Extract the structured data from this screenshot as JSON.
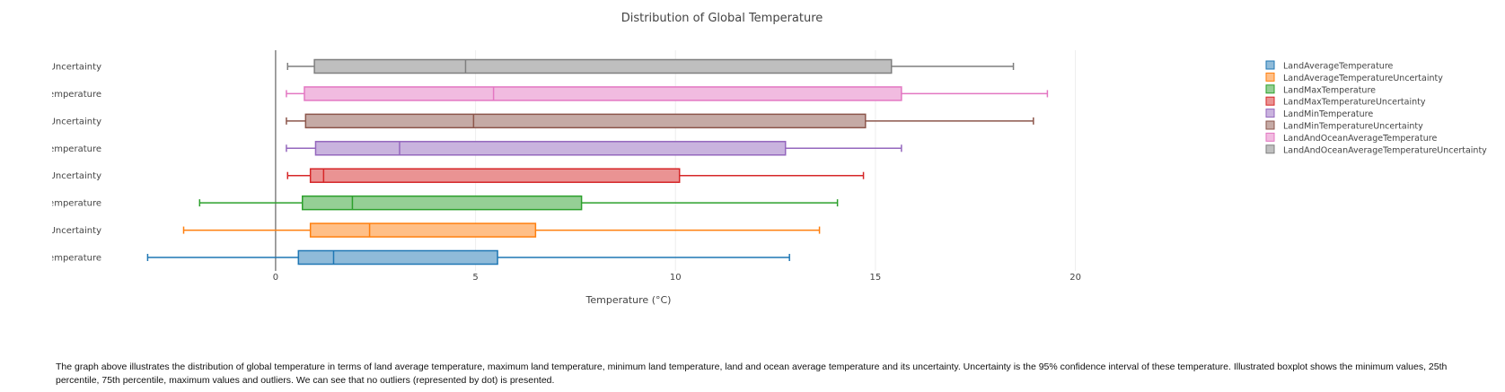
{
  "chart_data": {
    "type": "box",
    "orientation": "horizontal",
    "title": "Distribution of Global Temperature",
    "xlabel": "Temperature (°C)",
    "ylabel": "",
    "xlim": [
      -5.5,
      22.3
    ],
    "xticks": [
      0,
      5,
      10,
      15,
      20
    ],
    "grid": "vertical",
    "legend_position": "top-right",
    "series": [
      {
        "name": "LandAverageTemperature",
        "tick_label": "ɜTemperature",
        "color": "#1f77b4",
        "fill": "#8fbbd9",
        "min": -3.2,
        "q1": 0.57,
        "median": 1.45,
        "q3": 5.55,
        "max": 12.85
      },
      {
        "name": "LandAverageTemperatureUncertainty",
        "tick_label": "ɜeUncertainty",
        "color": "#ff7f0e",
        "fill": "#ffbf87",
        "min": -2.3,
        "q1": 0.87,
        "median": 2.35,
        "q3": 6.5,
        "max": 13.6
      },
      {
        "name": "LandMaxTemperature",
        "tick_label": ":Temperature",
        "color": "#2ca02c",
        "fill": "#95cf95",
        "min": -1.9,
        "q1": 0.67,
        "median": 1.92,
        "q3": 7.65,
        "max": 14.05
      },
      {
        "name": "LandMaxTemperatureUncertainty",
        "tick_label": "ɜeUncertainty",
        "color": "#d62728",
        "fill": "#ea9393",
        "min": 0.3,
        "q1": 0.87,
        "median": 1.2,
        "q3": 10.1,
        "max": 14.7
      },
      {
        "name": "LandMinTemperature",
        "tick_label": "ıTemperature",
        "color": "#9467bd",
        "fill": "#c9b3de",
        "min": 0.27,
        "q1": 1.0,
        "median": 3.1,
        "q3": 12.75,
        "max": 15.65
      },
      {
        "name": "LandMinTemperatureUncertainty",
        "tick_label": "ɜeUncertainty",
        "color": "#8c564b",
        "fill": "#c5aaa5",
        "min": 0.27,
        "q1": 0.75,
        "median": 4.95,
        "q3": 14.75,
        "max": 18.95
      },
      {
        "name": "LandAndOceanAverageTemperature",
        "tick_label": "ɜTemperature",
        "color": "#e377c2",
        "fill": "#f1bbe0",
        "min": 0.27,
        "q1": 0.72,
        "median": 5.45,
        "q3": 15.65,
        "max": 19.3
      },
      {
        "name": "LandAndOceanAverageTemperatureUncertainty",
        "tick_label": "ɜeUncertainty",
        "color": "#7f7f7f",
        "fill": "#bfbfbf",
        "min": 0.3,
        "q1": 0.97,
        "median": 4.75,
        "q3": 15.4,
        "max": 18.45
      }
    ]
  },
  "caption": "The graph above illustrates the distribution of global temperature in terms of land average temperature, maximum land temperature, minimum land temperature, land and ocean average temperature and its uncertainty. Uncertainty is the 95% confidence interval of these temperature. Illustrated boxplot shows the minimum values, 25th percentile, 75th percentile, maximum values and outliers. We can see that no outliers (represented by dot) is presented."
}
